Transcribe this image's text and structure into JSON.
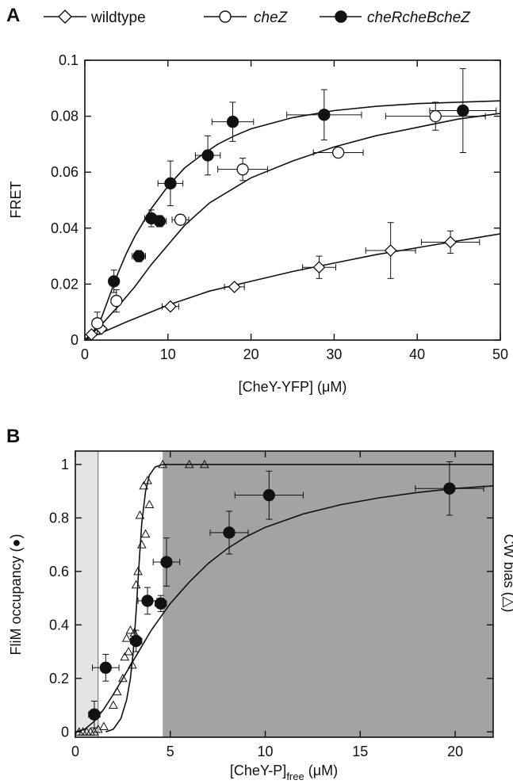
{
  "legend": {
    "placement": "top",
    "items": [
      {
        "label": "wildtype",
        "marker": "diamond-open"
      },
      {
        "label": "cheZ",
        "marker": "circle-open"
      },
      {
        "label": "cheRcheBcheZ",
        "marker": "circle-filled"
      }
    ]
  },
  "chart_data": [
    {
      "panel": "A",
      "type": "scatter",
      "xlabel": "[CheY-YFP] (μM)",
      "ylabel": "FRET",
      "xlim": [
        0,
        50
      ],
      "ylim": [
        0,
        0.1
      ],
      "xticks": [
        "0",
        "10",
        "20",
        "30",
        "40",
        "50"
      ],
      "yticks": [
        "0",
        "0.02",
        "0.04",
        "0.06",
        "0.08",
        "0.1"
      ],
      "grid": false,
      "series": [
        {
          "name": "wildtype",
          "marker": "diamond-open",
          "points": [
            {
              "x": 0.8,
              "y": 0.002,
              "xerr": 0.3,
              "yerr": 0.001
            },
            {
              "x": 2.0,
              "y": 0.004,
              "xerr": 0.4,
              "yerr": 0.001
            },
            {
              "x": 10.3,
              "y": 0.012,
              "xerr": 1.0,
              "yerr": 0.001
            },
            {
              "x": 18.0,
              "y": 0.019,
              "xerr": 1.2,
              "yerr": 0.001
            },
            {
              "x": 28.2,
              "y": 0.026,
              "xerr": 2.0,
              "yerr": 0.004
            },
            {
              "x": 36.8,
              "y": 0.032,
              "xerr": 3.0,
              "yerr": 0.01
            },
            {
              "x": 44.0,
              "y": 0.035,
              "xerr": 3.5,
              "yerr": 0.004
            }
          ],
          "fit": [
            [
              0,
              0
            ],
            [
              5,
              0.0065
            ],
            [
              10,
              0.0125
            ],
            [
              15,
              0.0175
            ],
            [
              20,
              0.021
            ],
            [
              25,
              0.0245
            ],
            [
              30,
              0.0275
            ],
            [
              35,
              0.0305
            ],
            [
              40,
              0.033
            ],
            [
              45,
              0.0355
            ],
            [
              50,
              0.038
            ]
          ]
        },
        {
          "name": "cheZ",
          "marker": "circle-open",
          "points": [
            {
              "x": 1.5,
              "y": 0.006,
              "xerr": 0.5,
              "yerr": 0.004
            },
            {
              "x": 3.8,
              "y": 0.014,
              "xerr": 0.5,
              "yerr": 0.004
            },
            {
              "x": 11.5,
              "y": 0.043,
              "xerr": 1.0,
              "yerr": 0.001
            },
            {
              "x": 19.0,
              "y": 0.061,
              "xerr": 3.0,
              "yerr": 0.004
            },
            {
              "x": 30.5,
              "y": 0.067,
              "xerr": 3.0,
              "yerr": 0.001
            },
            {
              "x": 42.2,
              "y": 0.08,
              "xerr": 6.0,
              "yerr": 0.005
            }
          ],
          "fit": [
            [
              0,
              0
            ],
            [
              2,
              0.0055
            ],
            [
              4,
              0.012
            ],
            [
              6,
              0.019
            ],
            [
              8,
              0.027
            ],
            [
              10,
              0.034
            ],
            [
              12,
              0.041
            ],
            [
              15,
              0.049
            ],
            [
              20,
              0.058
            ],
            [
              25,
              0.064
            ],
            [
              30,
              0.069
            ],
            [
              35,
              0.073
            ],
            [
              40,
              0.076
            ],
            [
              45,
              0.079
            ],
            [
              50,
              0.081
            ]
          ]
        },
        {
          "name": "cheRcheBcheZ",
          "marker": "circle-filled",
          "points": [
            {
              "x": 3.5,
              "y": 0.021,
              "xerr": 0.5,
              "yerr": 0.004
            },
            {
              "x": 6.5,
              "y": 0.03,
              "xerr": 0.8,
              "yerr": 0.002
            },
            {
              "x": 8.0,
              "y": 0.0435,
              "xerr": 0.8,
              "yerr": 0.003
            },
            {
              "x": 9.0,
              "y": 0.0425,
              "xerr": 0.8,
              "yerr": 0.002
            },
            {
              "x": 10.3,
              "y": 0.056,
              "xerr": 1.5,
              "yerr": 0.008
            },
            {
              "x": 14.8,
              "y": 0.066,
              "xerr": 1.5,
              "yerr": 0.007
            },
            {
              "x": 17.8,
              "y": 0.078,
              "xerr": 2.5,
              "yerr": 0.007
            },
            {
              "x": 28.8,
              "y": 0.0805,
              "xerr": 4.5,
              "yerr": 0.009
            },
            {
              "x": 45.5,
              "y": 0.082,
              "xerr": 4.0,
              "yerr": 0.015
            }
          ],
          "fit": [
            [
              0,
              0
            ],
            [
              1,
              0.003
            ],
            [
              2,
              0.008
            ],
            [
              3,
              0.016
            ],
            [
              4,
              0.024
            ],
            [
              5,
              0.031
            ],
            [
              6,
              0.037
            ],
            [
              7,
              0.042
            ],
            [
              8,
              0.047
            ],
            [
              10,
              0.055
            ],
            [
              12,
              0.0615
            ],
            [
              14,
              0.066
            ],
            [
              16,
              0.07
            ],
            [
              18,
              0.073
            ],
            [
              20,
              0.0755
            ],
            [
              25,
              0.0795
            ],
            [
              30,
              0.082
            ],
            [
              35,
              0.0835
            ],
            [
              40,
              0.0845
            ],
            [
              45,
              0.085
            ],
            [
              50,
              0.0855
            ]
          ]
        }
      ]
    },
    {
      "panel": "B",
      "type": "scatter",
      "xlabel": "[CheY-P]",
      "xlabel_subscript": "free",
      "xlabel_unit": " (μM)",
      "ylabel": "FliM occupancy (●)",
      "right_label_fragment": "CW bias (△)",
      "xlim": [
        0,
        22
      ],
      "ylim": [
        -0.02,
        1.05
      ],
      "xticks": [
        "0",
        "5",
        "10",
        "15",
        "20"
      ],
      "yticks": [
        "0",
        "0.2",
        "0.4",
        "0.6",
        "0.8",
        "1"
      ],
      "grid": false,
      "shaded_regions": [
        {
          "x0": 0,
          "x1": 1.2,
          "color": "#e4e4e4"
        },
        {
          "x0": 4.6,
          "x1": 22,
          "color": "#a3a3a3"
        }
      ],
      "series": [
        {
          "marker": "circle-filled",
          "points": [
            {
              "x": 1.0,
              "y": 0.065,
              "xerr": 0.3,
              "yerr": 0.05
            },
            {
              "x": 1.6,
              "y": 0.24,
              "xerr": 0.7,
              "yerr": 0.05
            },
            {
              "x": 3.2,
              "y": 0.34,
              "xerr": 0.3,
              "yerr": 0.04
            },
            {
              "x": 3.8,
              "y": 0.49,
              "xerr": 0.5,
              "yerr": 0.05
            },
            {
              "x": 4.5,
              "y": 0.48,
              "xerr": 0.3,
              "yerr": 0.03
            },
            {
              "x": 4.8,
              "y": 0.635,
              "xerr": 0.7,
              "yerr": 0.09
            },
            {
              "x": 8.1,
              "y": 0.745,
              "xerr": 1.0,
              "yerr": 0.08
            },
            {
              "x": 10.2,
              "y": 0.885,
              "xerr": 1.8,
              "yerr": 0.09
            },
            {
              "x": 19.7,
              "y": 0.91,
              "xerr": 1.8,
              "yerr": 0.1
            }
          ],
          "fit": [
            [
              0,
              0
            ],
            [
              0.5,
              0.01
            ],
            [
              1,
              0.04
            ],
            [
              1.5,
              0.085
            ],
            [
              2,
              0.14
            ],
            [
              2.5,
              0.2
            ],
            [
              3,
              0.26
            ],
            [
              3.5,
              0.32
            ],
            [
              4,
              0.38
            ],
            [
              5,
              0.48
            ],
            [
              6,
              0.56
            ],
            [
              7,
              0.63
            ],
            [
              8,
              0.685
            ],
            [
              9,
              0.73
            ],
            [
              10,
              0.765
            ],
            [
              12,
              0.815
            ],
            [
              14,
              0.85
            ],
            [
              16,
              0.875
            ],
            [
              18,
              0.895
            ],
            [
              20,
              0.91
            ],
            [
              22,
              0.92
            ]
          ]
        },
        {
          "marker": "triangle-open",
          "points": [
            {
              "x": 0.2,
              "y": 0.0
            },
            {
              "x": 0.4,
              "y": 0.0
            },
            {
              "x": 0.6,
              "y": 0.0
            },
            {
              "x": 0.8,
              "y": 0.0
            },
            {
              "x": 1.0,
              "y": 0.0
            },
            {
              "x": 1.2,
              "y": 0.01
            },
            {
              "x": 1.5,
              "y": 0.02
            },
            {
              "x": 2.0,
              "y": 0.1
            },
            {
              "x": 2.2,
              "y": 0.15
            },
            {
              "x": 2.5,
              "y": 0.2
            },
            {
              "x": 2.6,
              "y": 0.28
            },
            {
              "x": 2.7,
              "y": 0.35
            },
            {
              "x": 2.8,
              "y": 0.3
            },
            {
              "x": 2.9,
              "y": 0.38
            },
            {
              "x": 3.0,
              "y": 0.25
            },
            {
              "x": 3.1,
              "y": 0.37
            },
            {
              "x": 3.2,
              "y": 0.55
            },
            {
              "x": 3.3,
              "y": 0.6
            },
            {
              "x": 3.4,
              "y": 0.81
            },
            {
              "x": 3.5,
              "y": 0.7
            },
            {
              "x": 3.6,
              "y": 0.92
            },
            {
              "x": 3.7,
              "y": 0.74
            },
            {
              "x": 3.8,
              "y": 0.94
            },
            {
              "x": 3.9,
              "y": 0.85
            },
            {
              "x": 4.6,
              "y": 1.0
            },
            {
              "x": 6.0,
              "y": 1.0
            },
            {
              "x": 6.8,
              "y": 1.0
            }
          ],
          "fit": [
            [
              1.6,
              0
            ],
            [
              2,
              0.01
            ],
            [
              2.4,
              0.05
            ],
            [
              2.7,
              0.12
            ],
            [
              2.9,
              0.2
            ],
            [
              3.05,
              0.3
            ],
            [
              3.2,
              0.45
            ],
            [
              3.35,
              0.62
            ],
            [
              3.5,
              0.78
            ],
            [
              3.7,
              0.9
            ],
            [
              3.9,
              0.96
            ],
            [
              4.2,
              0.99
            ],
            [
              4.6,
              1.0
            ],
            [
              22,
              1.0
            ]
          ]
        }
      ]
    }
  ]
}
